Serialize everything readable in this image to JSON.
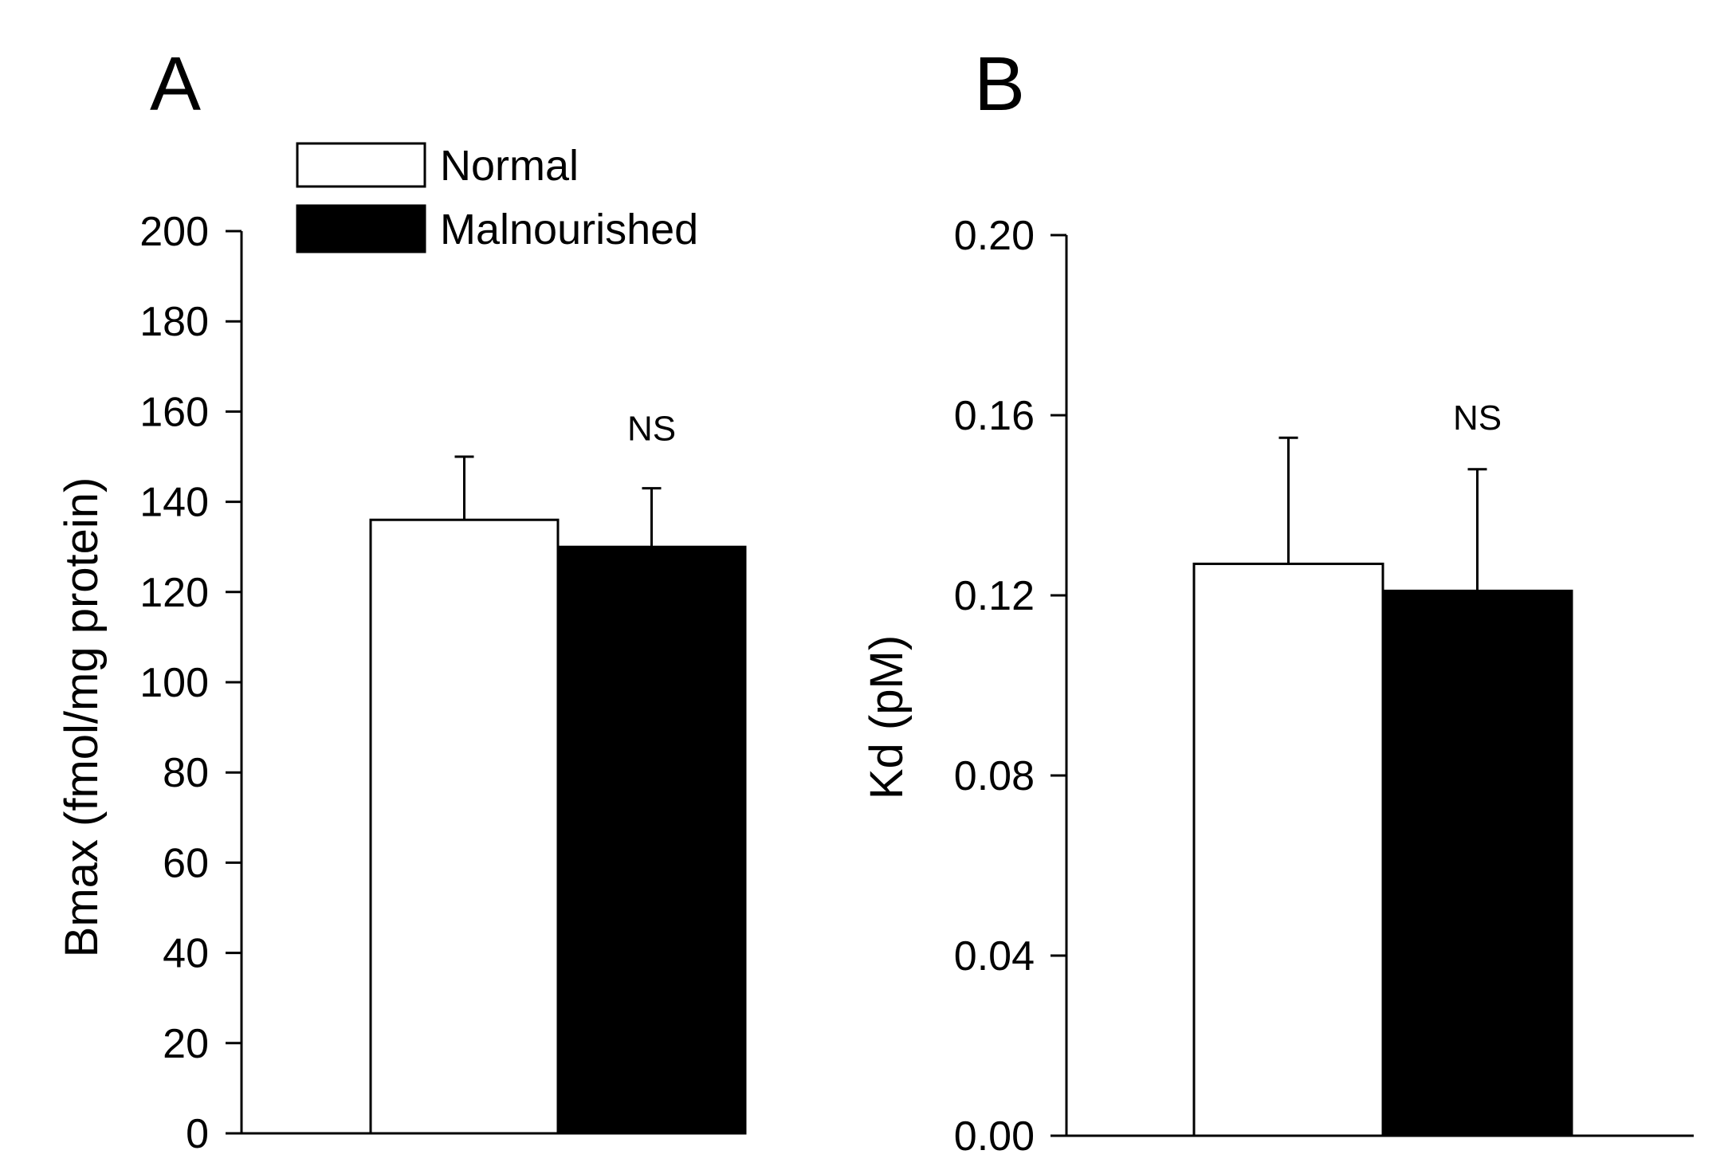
{
  "chart_data": [
    {
      "type": "bar",
      "panel": "A",
      "title": "",
      "xlabel": "",
      "ylabel": "Bmax (fmol/mg protein)",
      "ylim": [
        0,
        200
      ],
      "yticks": [
        0,
        20,
        40,
        60,
        80,
        100,
        120,
        140,
        160,
        180,
        200
      ],
      "ytick_labels": [
        "0",
        "20",
        "40",
        "60",
        "80",
        "100",
        "120",
        "140",
        "160",
        "180",
        "200"
      ],
      "categories": [
        "Normal",
        "Malnourished"
      ],
      "series": [
        {
          "name": "Normal",
          "color": "#ffffff",
          "value": 136,
          "error": 14
        },
        {
          "name": "Malnourished",
          "color": "#000000",
          "value": 130,
          "error": 13
        }
      ],
      "annotation": "NS",
      "legend": {
        "placement": "top-left",
        "entries": [
          {
            "label": "Normal",
            "color": "#ffffff"
          },
          {
            "label": "Malnourished",
            "color": "#000000"
          }
        ]
      }
    },
    {
      "type": "bar",
      "panel": "B",
      "title": "",
      "xlabel": "",
      "ylabel": "Kd (pM)",
      "ylim": [
        0,
        0.2
      ],
      "yticks": [
        0,
        0.04,
        0.08,
        0.12,
        0.16,
        0.2
      ],
      "ytick_labels": [
        "0.00",
        "0.04",
        "0.08",
        "0.12",
        "0.16",
        "0.20"
      ],
      "categories": [
        "Normal",
        "Malnourished"
      ],
      "series": [
        {
          "name": "Normal",
          "color": "#ffffff",
          "value": 0.127,
          "error": 0.028
        },
        {
          "name": "Malnourished",
          "color": "#000000",
          "value": 0.121,
          "error": 0.027
        }
      ],
      "annotation": "NS"
    }
  ]
}
